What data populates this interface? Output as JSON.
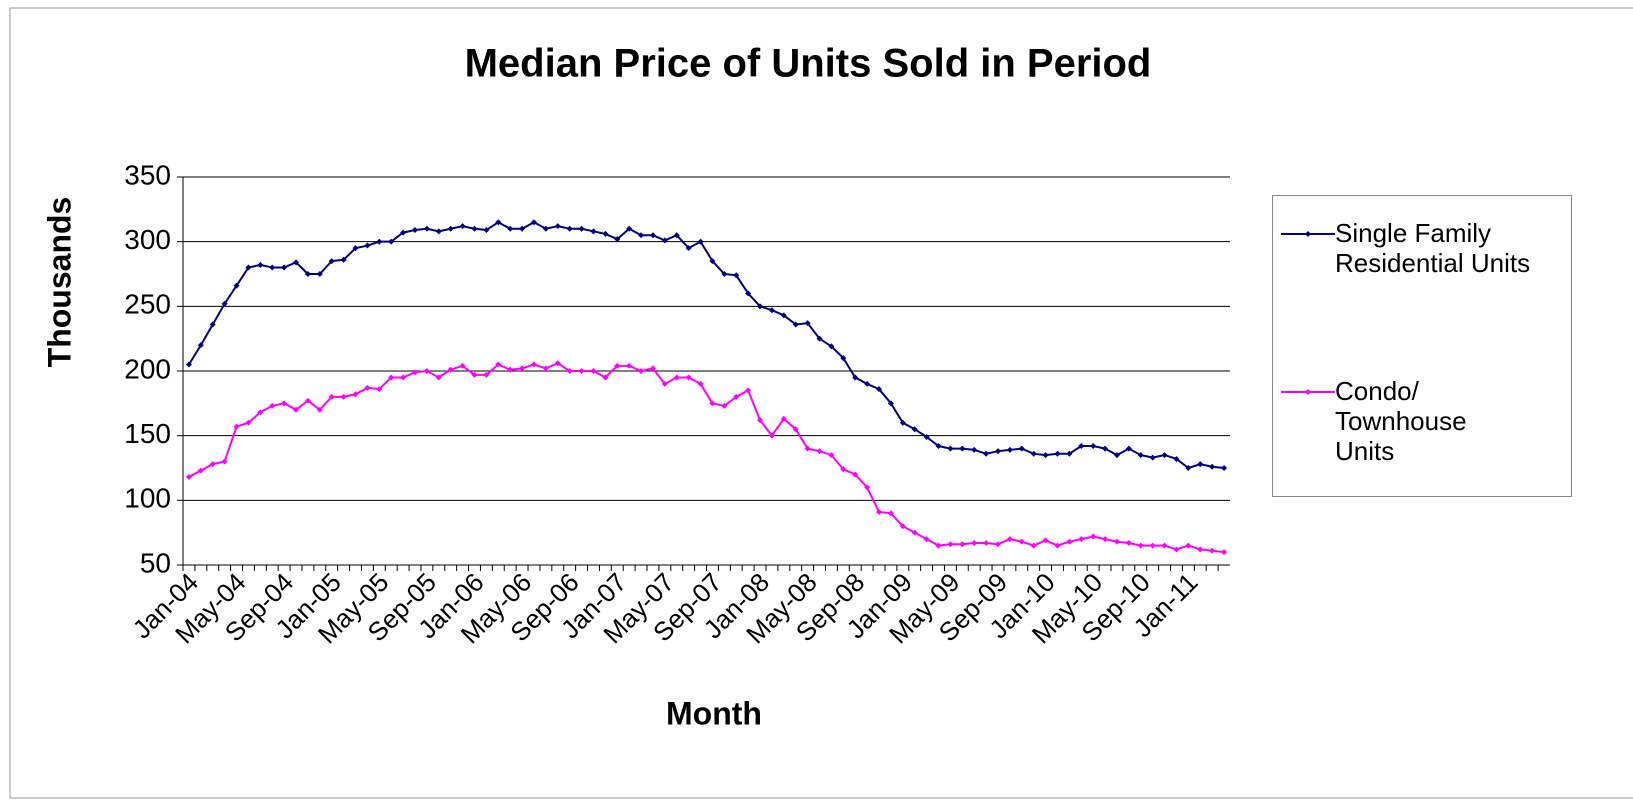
{
  "chart_data": {
    "type": "line",
    "title": "Median Price of Units Sold in Period",
    "x_label": "Month",
    "y_label": "Thousands",
    "categories": [
      "Jan-04",
      null,
      null,
      null,
      "May-04",
      null,
      null,
      null,
      "Sep-04",
      null,
      null,
      null,
      "Jan-05",
      null,
      null,
      null,
      "May-05",
      null,
      null,
      null,
      "Sep-05",
      null,
      null,
      null,
      "Jan-06",
      null,
      null,
      null,
      "May-06",
      null,
      null,
      null,
      "Sep-06",
      null,
      null,
      null,
      "Jan-07",
      null,
      null,
      null,
      "May-07",
      null,
      null,
      null,
      "Sep-07",
      null,
      null,
      null,
      "Jan-08",
      null,
      null,
      null,
      "May-08",
      null,
      null,
      null,
      "Sep-08",
      null,
      null,
      null,
      "Jan-09",
      null,
      null,
      null,
      "May-09",
      null,
      null,
      null,
      "Sep-09",
      null,
      null,
      null,
      "Jan-10",
      null,
      null,
      null,
      "May-10",
      null,
      null,
      null,
      "Sep-10",
      null,
      null,
      null,
      "Jan-11",
      null,
      null,
      null
    ],
    "series": [
      {
        "name": "Single Family Residential Units",
        "color": "#000080",
        "values": [
          205,
          220,
          236,
          252,
          266,
          280,
          282,
          280,
          280,
          284,
          275,
          275,
          285,
          286,
          295,
          297,
          300,
          300,
          307,
          309,
          310,
          308,
          310,
          312,
          310,
          309,
          315,
          310,
          310,
          315,
          310,
          312,
          310,
          310,
          308,
          306,
          302,
          310,
          305,
          305,
          301,
          305,
          295,
          300,
          285,
          275,
          274,
          260,
          250,
          247,
          243,
          236,
          237,
          225,
          219,
          210,
          195,
          190,
          186,
          175,
          160,
          155,
          149,
          142,
          140,
          140,
          139,
          136,
          138,
          139,
          140,
          136,
          135,
          136,
          136,
          142,
          142,
          140,
          135,
          140,
          135,
          133,
          135,
          132,
          125,
          128,
          126,
          125
        ]
      },
      {
        "name": "Condo/ Townhouse Units",
        "color": "#ff00ff",
        "values": [
          118,
          123,
          128,
          130,
          157,
          160,
          168,
          173,
          175,
          170,
          177,
          170,
          180,
          180,
          182,
          187,
          186,
          195,
          195,
          199,
          200,
          195,
          201,
          204,
          197,
          197,
          205,
          201,
          202,
          205,
          202,
          206,
          200,
          200,
          200,
          195,
          204,
          204,
          200,
          202,
          190,
          195,
          195,
          190,
          175,
          173,
          180,
          185,
          162,
          150,
          163,
          155,
          140,
          138,
          135,
          124,
          120,
          110,
          91,
          90,
          80,
          75,
          70,
          65,
          66,
          66,
          67,
          67,
          66,
          70,
          68,
          65,
          69,
          65,
          68,
          70,
          72,
          70,
          68,
          67,
          65,
          65,
          65,
          62,
          65,
          62,
          61,
          60
        ]
      }
    ],
    "ylim": [
      50,
      350
    ],
    "yticks": [
      50,
      100,
      150,
      200,
      250,
      300,
      350
    ],
    "grid": true,
    "legend": "right"
  }
}
